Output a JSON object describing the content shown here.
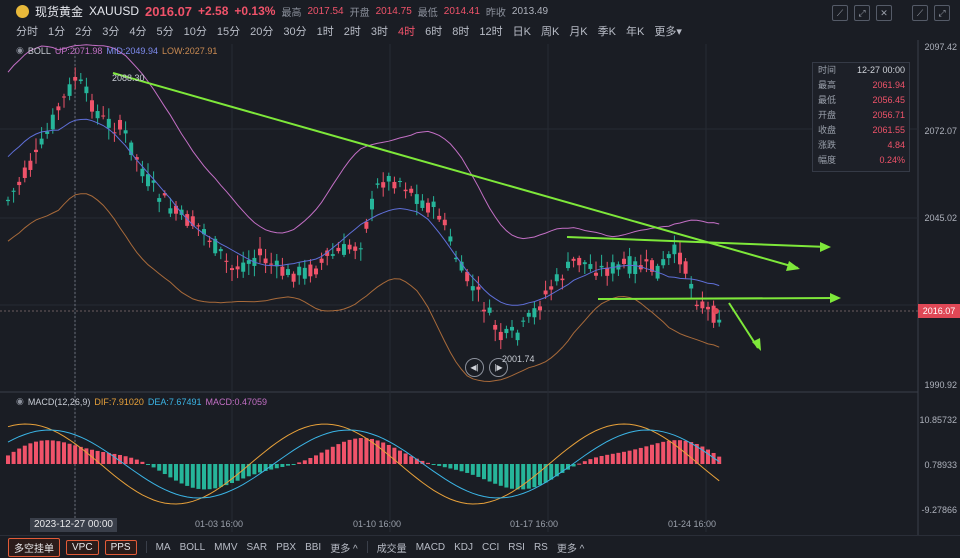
{
  "header": {
    "name": "现货黄金",
    "symbol": "XAUUSD",
    "price": "2016.07",
    "change": "+2.58",
    "change_pct": "+0.13%",
    "high_label": "最高",
    "high": "2017.54",
    "open_label": "开盘",
    "open": "2014.75",
    "low_label": "最低",
    "low": "2014.41",
    "prev_label": "昨收",
    "prev": "2013.49"
  },
  "timeframes": [
    "分时",
    "1分",
    "2分",
    "3分",
    "4分",
    "5分",
    "10分",
    "15分",
    "20分",
    "30分",
    "1时",
    "2时",
    "3时",
    "4时",
    "6时",
    "8时",
    "12时",
    "日K",
    "周K",
    "月K",
    "季K",
    "年K",
    "更多▾"
  ],
  "active_timeframe": "4时",
  "boll": {
    "name": "BOLL",
    "up": "UP:2071.98",
    "mid": "MID:2049.94",
    "low": "LOW:2027.91"
  },
  "macd": {
    "name": "MACD(12,26,9)",
    "dif": "DIF:7.91020",
    "dea": "DEA:7.67491",
    "macd": "MACD:0.47059"
  },
  "tooltip": [
    {
      "k": "时间",
      "v": "12-27 00:00",
      "red": false
    },
    {
      "k": "最高",
      "v": "2061.94",
      "red": true
    },
    {
      "k": "最低",
      "v": "2056.45",
      "red": true
    },
    {
      "k": "开盘",
      "v": "2056.71",
      "red": true
    },
    {
      "k": "收盘",
      "v": "2061.55",
      "red": true
    },
    {
      "k": "涨跌",
      "v": "4.84",
      "red": true
    },
    {
      "k": "幅度",
      "v": "0.24%",
      "red": true
    }
  ],
  "price_axis": [
    "2097.42",
    "2072.07",
    "2045.02",
    "1990.92"
  ],
  "current_price_tag": "2016.07",
  "macd_axis": [
    "10.85732",
    "0.78933",
    "-9.27866"
  ],
  "annotations": {
    "high_mark": "2088.30",
    "low_mark": "2001.74"
  },
  "x_labels": [
    "01-03 16:00",
    "01-10 16:00",
    "01-17 16:00",
    "01-24 16:00"
  ],
  "crosshair_date": "2023-12-27 00:00",
  "bottom": {
    "buttons": [
      "多空挂单",
      "VPC",
      "PPS"
    ],
    "main_indicators": [
      "MA",
      "BOLL",
      "MMV",
      "SAR",
      "PBX",
      "BBI",
      "更多 ^"
    ],
    "sub_indicators": [
      "成交量",
      "MACD",
      "KDJ",
      "CCI",
      "RSI",
      "RS",
      "更多 ^"
    ]
  },
  "colors": {
    "up": "#f0536a",
    "down": "#26b59a",
    "trend": "#7ee83a",
    "boll_up": "#c36fc5",
    "boll_mid": "#5f6fd8",
    "boll_low": "#a86a3a"
  }
}
